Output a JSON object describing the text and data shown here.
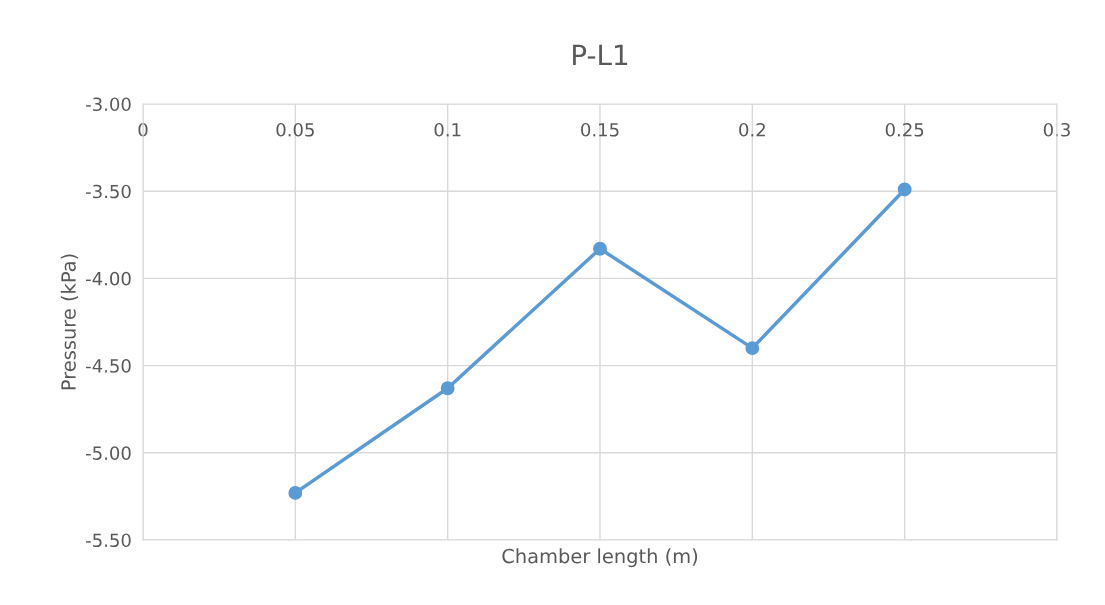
{
  "chart_data": {
    "type": "line",
    "title": "P-L1",
    "xlabel": "Chamber length (m)",
    "ylabel": "Pressure (kPa)",
    "x": [
      0.05,
      0.1,
      0.15,
      0.2,
      0.25
    ],
    "series": [
      {
        "color": "#5b9bd5",
        "values": [
          -5.23,
          -4.63,
          -3.83,
          -4.4,
          -3.49
        ]
      }
    ],
    "xlim": [
      0,
      0.3
    ],
    "xticks": [
      0,
      0.05,
      0.1,
      0.15,
      0.2,
      0.25,
      0.3
    ],
    "ylim": [
      -5.5,
      -3.0
    ],
    "yticks": [
      {
        "value": -5.5,
        "label": "-5.50"
      },
      {
        "value": -5.0,
        "label": "-5.00"
      },
      {
        "value": -4.5,
        "label": "-4.50"
      },
      {
        "value": -4.0,
        "label": "-4.00"
      },
      {
        "value": -3.5,
        "label": "-3.50"
      },
      {
        "value": -3.0,
        "label": "-3.00"
      }
    ],
    "grid": true,
    "marker": "circle",
    "line_style": "solid"
  }
}
